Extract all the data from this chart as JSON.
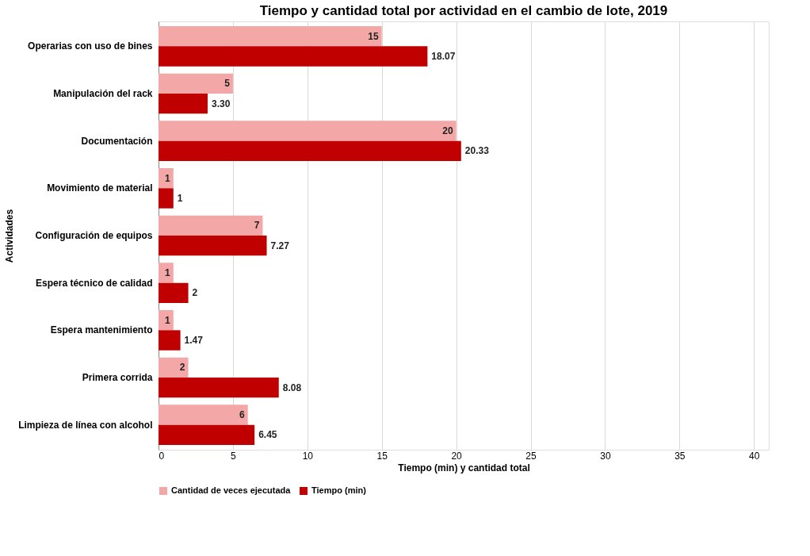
{
  "chart_data": {
    "type": "bar",
    "orientation": "horizontal",
    "title": "Tiempo y cantidad total por actividad en el cambio de lote, 2019",
    "xlabel": "Tiempo (min) y cantidad total",
    "ylabel": "Actividades",
    "categories": [
      "Operarias con uso de bines",
      "Manipulación del rack",
      "Documentación",
      "Movimiento de material",
      "Configuración de equipos",
      "Espera técnico de calidad",
      "Espera mantenimiento",
      "Primera corrida",
      "Limpieza de línea con alcohol"
    ],
    "series": [
      {
        "name": "Cantidad de veces ejecutada",
        "color": "#f4a7a7",
        "values": [
          15,
          5,
          20,
          1,
          7,
          1,
          1,
          2,
          6
        ],
        "value_labels": [
          "15",
          "5",
          "20",
          "1",
          "7",
          "1",
          "1",
          "2",
          "6"
        ]
      },
      {
        "name": "Tiempo (min)",
        "color": "#c00000",
        "values": [
          18.07,
          3.3,
          20.33,
          1,
          7.27,
          2,
          1.47,
          8.08,
          6.45
        ],
        "value_labels": [
          "18.07",
          "3.30",
          "20.33",
          "1",
          "7.27",
          "2",
          "1.47",
          "8.08",
          "6.45"
        ]
      }
    ],
    "xlim": [
      0,
      41
    ],
    "xticks": [
      0,
      5,
      10,
      15,
      20,
      25,
      30,
      35,
      40
    ],
    "grid": "x",
    "legend": "bottom"
  }
}
